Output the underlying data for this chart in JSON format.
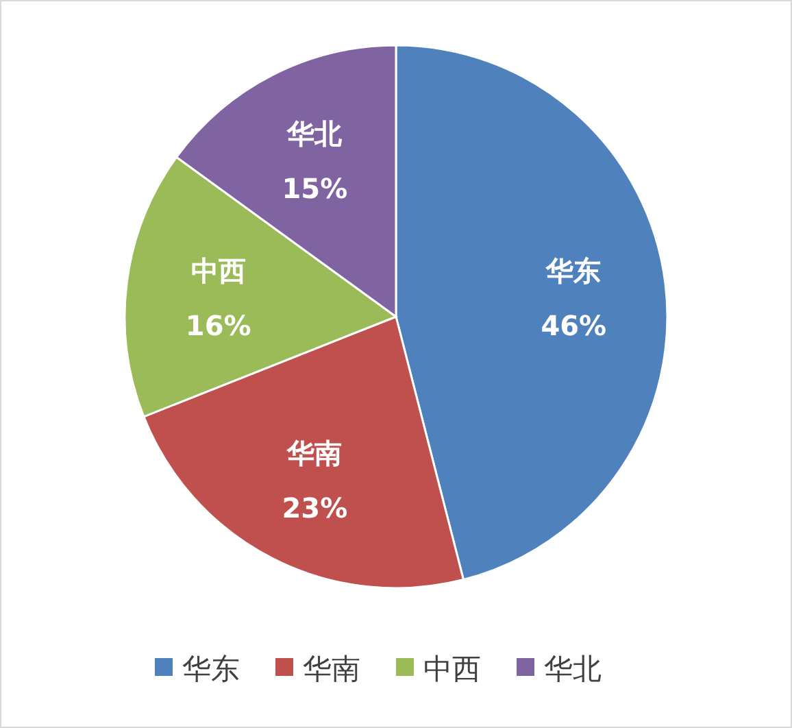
{
  "chart_data": {
    "type": "pie",
    "categories": [
      "华东",
      "华南",
      "中西",
      "华北"
    ],
    "values": [
      46,
      23,
      16,
      15
    ],
    "value_labels": [
      "46%",
      "23%",
      "16%",
      "15%"
    ],
    "colors": [
      "#4f81bd",
      "#c0504d",
      "#9bbb59",
      "#8064a2"
    ],
    "legend": "bottom"
  }
}
